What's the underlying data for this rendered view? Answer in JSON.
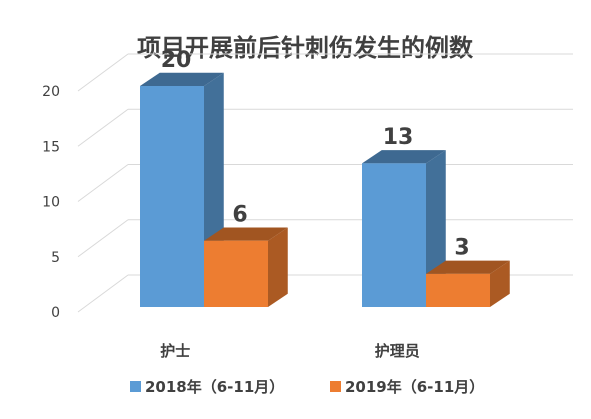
{
  "chart_data": {
    "type": "bar",
    "title": "项目开展前后针刺伤发生的例数",
    "categories": [
      "护士",
      "护理员"
    ],
    "series": [
      {
        "name": "2018年（6-11月）",
        "values": [
          20,
          13
        ],
        "color": "#5b9bd5"
      },
      {
        "name": "2019年（6-11月）",
        "values": [
          6,
          3
        ],
        "color": "#ed7d31"
      }
    ],
    "ylim": [
      0,
      20
    ],
    "yticks": [
      0,
      5,
      10,
      15,
      20
    ],
    "grid": true,
    "legend_position": "bottom",
    "three_d": true
  }
}
